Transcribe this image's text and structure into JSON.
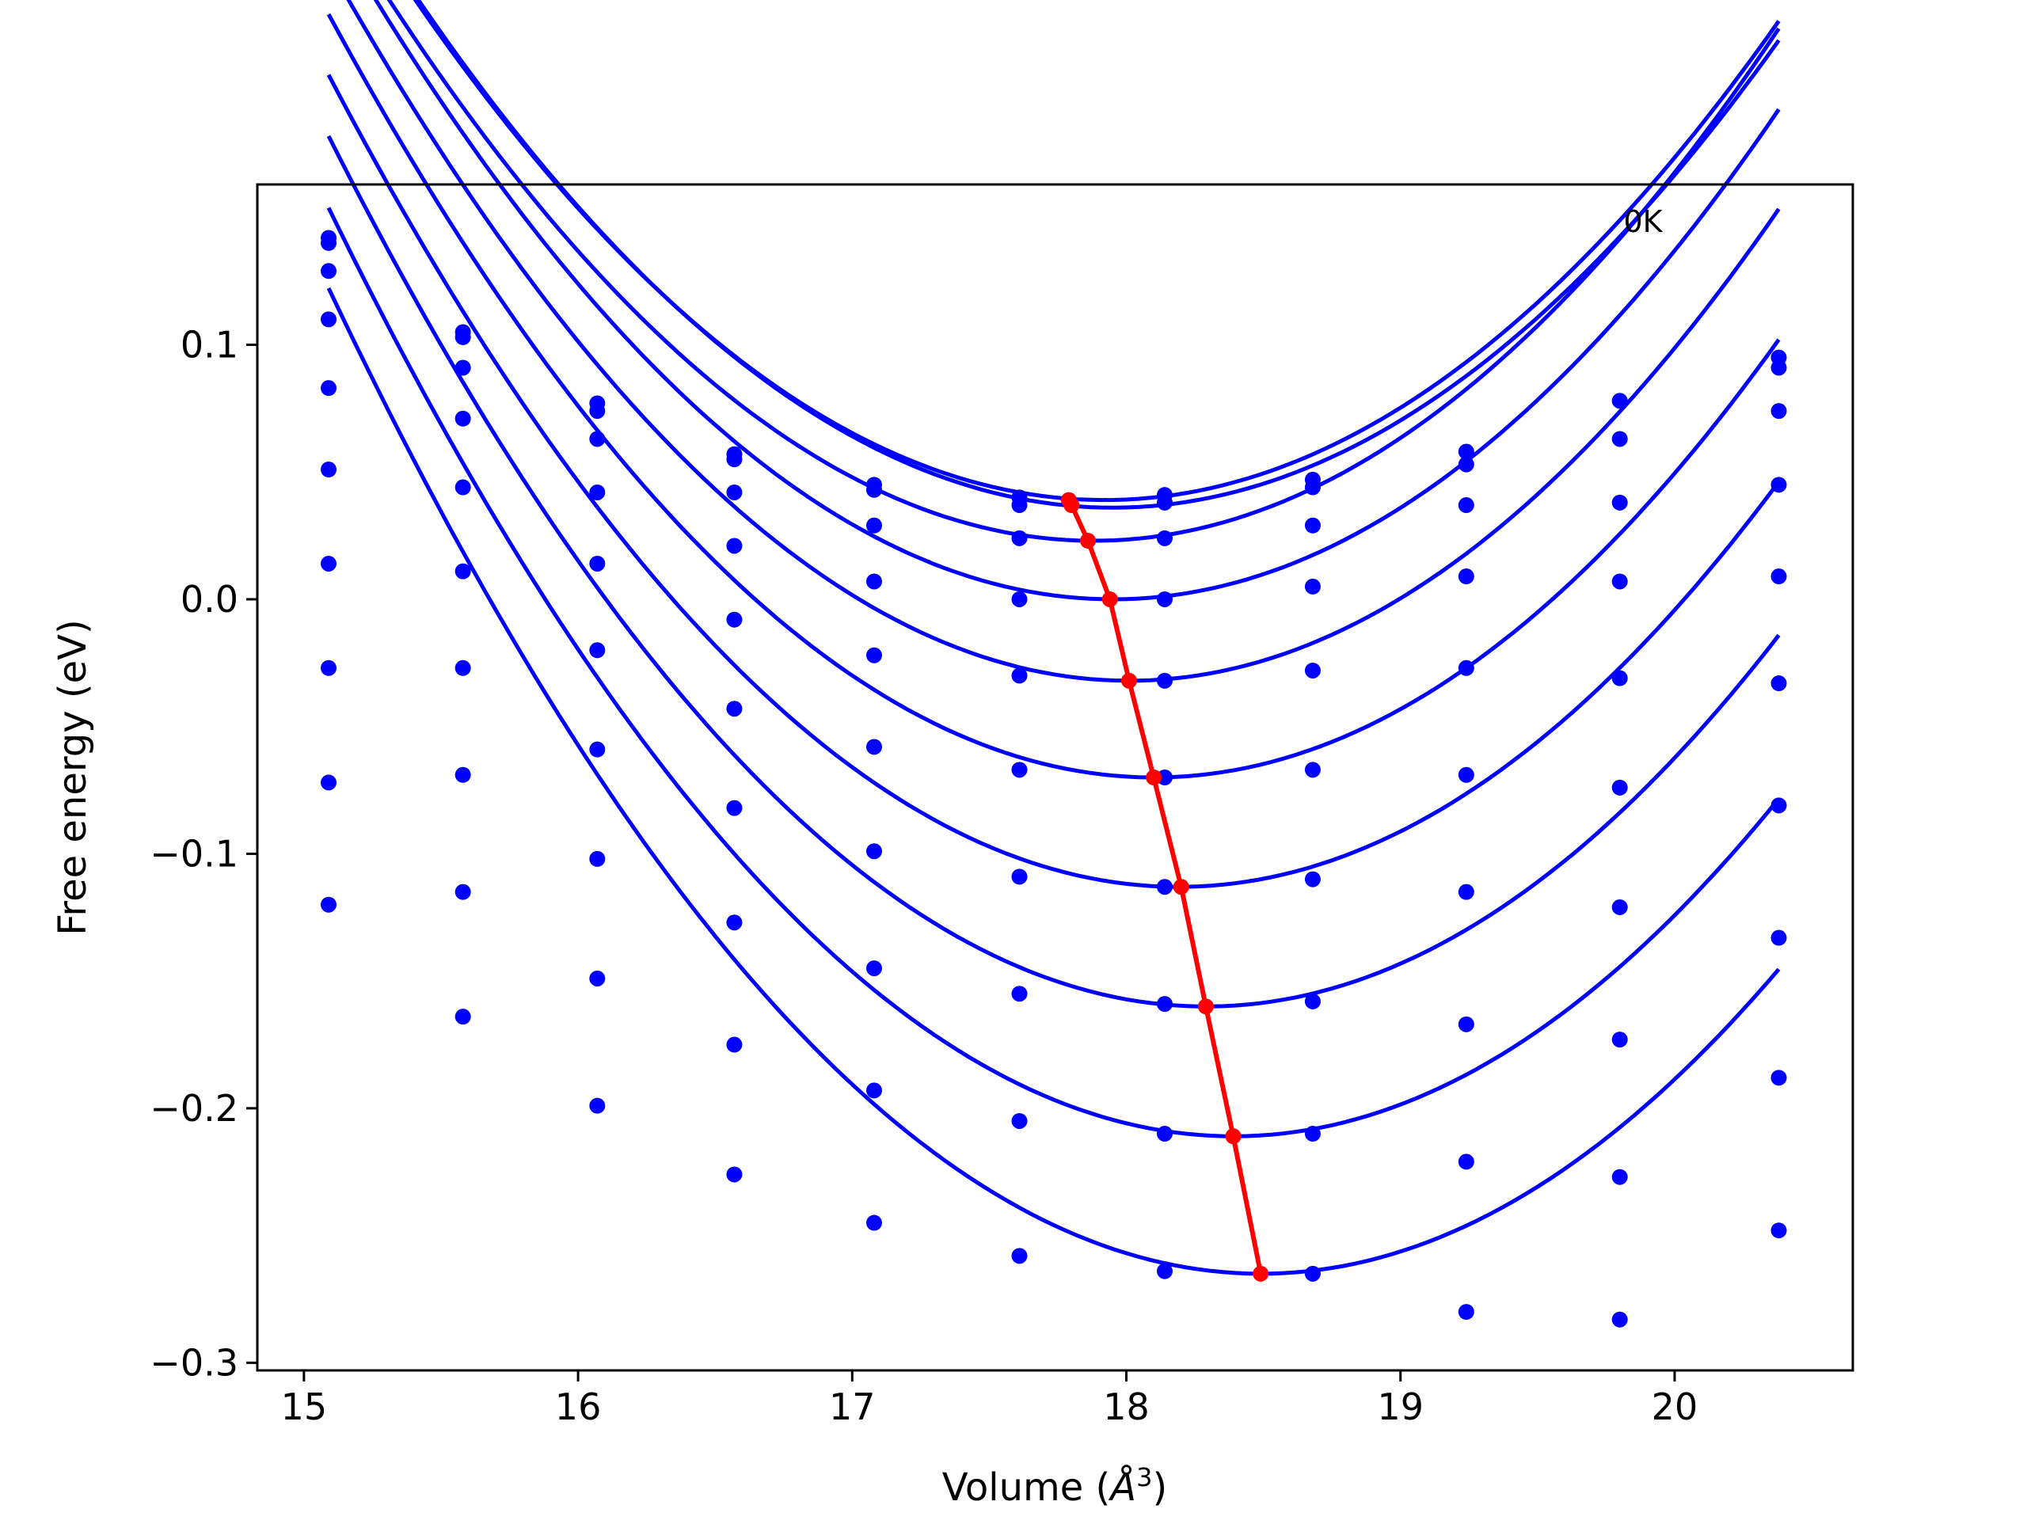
{
  "chart_data": {
    "type": "scatter",
    "title": "",
    "annotation": "0K",
    "xlabel": "Volume",
    "xlabel_unit_base": "Å",
    "xlabel_unit_exp": "3",
    "ylabel": "Free energy (eV)",
    "xlim": [
      14.83,
      20.65
    ],
    "ylim": [
      -0.303,
      0.163
    ],
    "xticks": [
      15,
      16,
      17,
      18,
      19,
      20
    ],
    "xtick_labels": [
      "15",
      "16",
      "17",
      "18",
      "19",
      "20"
    ],
    "yticks": [
      -0.3,
      -0.2,
      -0.1,
      0.0,
      0.1
    ],
    "ytick_labels": [
      "−0.3",
      "−0.2",
      "−0.1",
      "0.0",
      "0.1"
    ],
    "grid": false,
    "legend": "none",
    "colors": {
      "points": "#0000ff",
      "fit": "#0000ff",
      "minima": "#ff0000"
    },
    "x": [
      15.09,
      15.58,
      16.07,
      16.57,
      17.08,
      17.61,
      18.14,
      18.68,
      19.24,
      19.8,
      20.38
    ],
    "series": [
      {
        "values": [
          0.142,
          0.105,
          0.077,
          0.057,
          0.045,
          0.04,
          0.041,
          0.047,
          0.058,
          0.078,
          0.095
        ],
        "fit_to": 20.38
      },
      {
        "values": [
          0.14,
          0.103,
          0.074,
          0.055,
          0.043,
          0.037,
          0.038,
          0.044,
          0.053,
          0.063,
          0.091
        ],
        "fit_to": 20.38
      },
      {
        "values": [
          0.129,
          0.091,
          0.063,
          0.042,
          0.029,
          0.024,
          0.024,
          0.029,
          0.037,
          0.038,
          0.074
        ],
        "fit_to": 20.38
      },
      {
        "values": [
          0.11,
          0.071,
          0.042,
          0.021,
          0.007,
          0.0,
          0.0,
          0.005,
          0.009,
          0.007,
          0.045
        ],
        "fit_to": 20.38
      },
      {
        "values": [
          0.083,
          0.044,
          0.014,
          -0.008,
          -0.022,
          -0.03,
          -0.032,
          -0.028,
          -0.027,
          -0.031,
          0.009
        ],
        "fit_to": 20.38
      },
      {
        "values": [
          0.051,
          0.011,
          -0.02,
          -0.043,
          -0.058,
          -0.067,
          -0.07,
          -0.067,
          -0.069,
          -0.074,
          -0.033
        ],
        "fit_to": 20.38
      },
      {
        "values": [
          0.014,
          -0.027,
          -0.059,
          -0.082,
          -0.099,
          -0.109,
          -0.113,
          -0.11,
          -0.115,
          -0.121,
          -0.081
        ],
        "fit_to": 20.38
      },
      {
        "values": [
          -0.027,
          -0.069,
          -0.102,
          -0.127,
          -0.145,
          -0.155,
          -0.159,
          -0.158,
          -0.167,
          -0.173,
          -0.133
        ],
        "fit_to": 20.38
      },
      {
        "values": [
          -0.072,
          -0.115,
          -0.149,
          -0.175,
          -0.193,
          -0.205,
          -0.21,
          -0.21,
          -0.221,
          -0.227,
          -0.188
        ],
        "fit_to": 20.38
      },
      {
        "values": [
          -0.12,
          -0.164,
          -0.199,
          -0.226,
          -0.245,
          -0.258,
          -0.264,
          -0.265,
          -0.28,
          -0.283,
          -0.248
        ],
        "fit_to": 20.38
      }
    ],
    "fit_series": [
      {
        "x_min": 17.92,
        "y_min": 0.039,
        "curvature": 0.0311
      },
      {
        "x_min": 17.95,
        "y_min": 0.036,
        "curvature": 0.0311
      },
      {
        "x_min": 17.88,
        "y_min": 0.023,
        "curvature": 0.0322
      },
      {
        "x_min": 17.95,
        "y_min": 0.0,
        "curvature": 0.0326
      },
      {
        "x_min": 18.01,
        "y_min": -0.032,
        "curvature": 0.033
      },
      {
        "x_min": 18.1,
        "y_min": -0.07,
        "curvature": 0.0331
      },
      {
        "x_min": 18.19,
        "y_min": -0.113,
        "curvature": 0.0332
      },
      {
        "x_min": 18.29,
        "y_min": -0.16,
        "curvature": 0.0334
      },
      {
        "x_min": 18.39,
        "y_min": -0.211,
        "curvature": 0.0335
      },
      {
        "x_min": 18.49,
        "y_min": -0.265,
        "curvature": 0.0335
      }
    ],
    "minima_line": {
      "x": [
        17.79,
        17.8,
        17.86,
        17.94,
        18.01,
        18.1,
        18.2,
        18.29,
        18.39,
        18.49
      ],
      "y": [
        0.039,
        0.037,
        0.023,
        0.0,
        -0.032,
        -0.07,
        -0.113,
        -0.16,
        -0.211,
        -0.265
      ]
    }
  }
}
